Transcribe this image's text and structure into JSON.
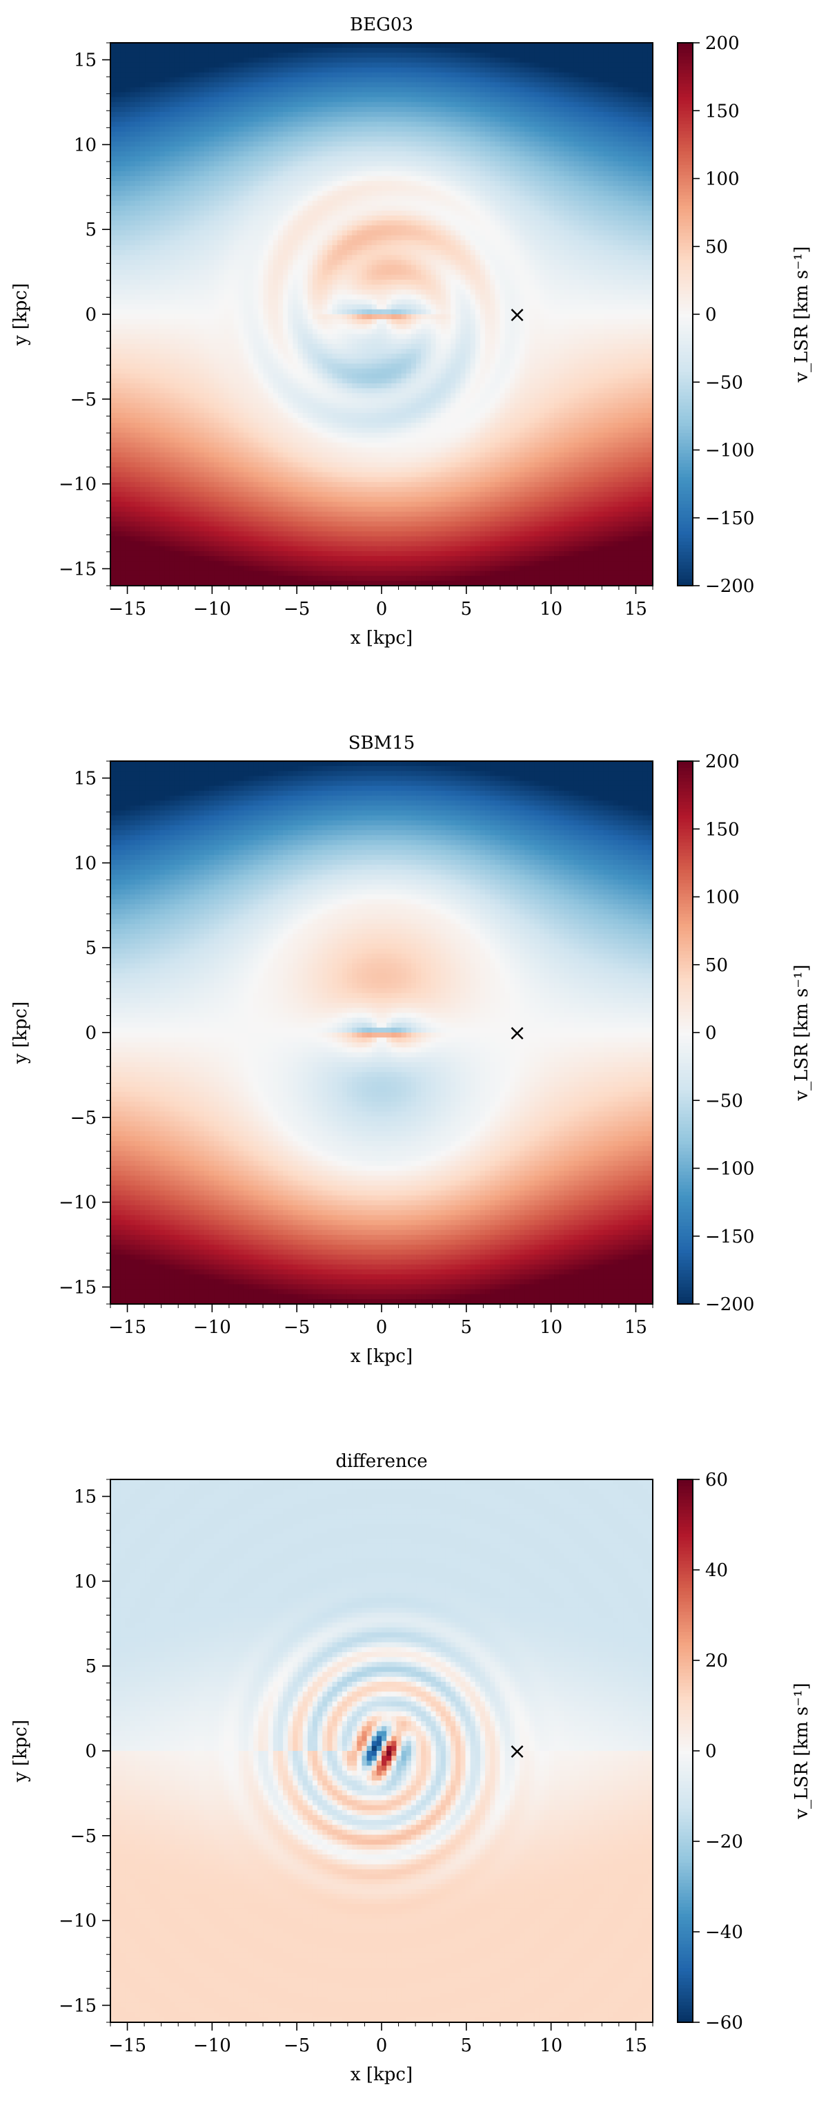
{
  "chart_data": [
    {
      "type": "heatmap",
      "title": "BEG03",
      "xlabel": "x [kpc]",
      "ylabel": "y [kpc]",
      "xlim": [
        -16,
        16
      ],
      "ylim": [
        -16,
        16
      ],
      "xticks": [
        -15,
        -10,
        -5,
        0,
        5,
        10,
        15
      ],
      "yticks": [
        -15,
        -10,
        -5,
        0,
        5,
        10,
        15
      ],
      "colorbar": {
        "label": "v_LSR [km s⁻¹]",
        "range": [
          -200,
          200
        ],
        "ticks": [
          -200,
          -150,
          -100,
          -50,
          0,
          50,
          100,
          150,
          200
        ],
        "colormap": "RdBu_r"
      },
      "field": {
        "model": "rotation",
        "vmax": 200,
        "inner_radius": 7.5,
        "center_peak": 180,
        "ripples": true
      },
      "marker": {
        "symbol": "×",
        "x": 8,
        "y": 0
      },
      "grid": false
    },
    {
      "type": "heatmap",
      "title": "SBM15",
      "xlabel": "x [kpc]",
      "ylabel": "y [kpc]",
      "xlim": [
        -16,
        16
      ],
      "ylim": [
        -16,
        16
      ],
      "xticks": [
        -15,
        -10,
        -5,
        0,
        5,
        10,
        15
      ],
      "yticks": [
        -15,
        -10,
        -5,
        0,
        5,
        10,
        15
      ],
      "colorbar": {
        "label": "v_LSR [km s⁻¹]",
        "range": [
          -200,
          200
        ],
        "ticks": [
          -200,
          -150,
          -100,
          -50,
          0,
          50,
          100,
          150,
          200
        ],
        "colormap": "RdBu_r"
      },
      "field": {
        "model": "rotation",
        "vmax": 200,
        "inner_radius": 7.5,
        "center_peak": 190,
        "ripples": false
      },
      "marker": {
        "symbol": "×",
        "x": 8,
        "y": 0
      },
      "grid": false
    },
    {
      "type": "heatmap",
      "title": "difference",
      "xlabel": "x [kpc]",
      "ylabel": "y [kpc]",
      "xlim": [
        -16,
        16
      ],
      "ylim": [
        -16,
        16
      ],
      "xticks": [
        -15,
        -10,
        -5,
        0,
        5,
        10,
        15
      ],
      "yticks": [
        -15,
        -10,
        -5,
        0,
        5,
        10,
        15
      ],
      "colorbar": {
        "label": "v_LSR [km s⁻¹]",
        "range": [
          -60,
          60
        ],
        "ticks": [
          -60,
          -40,
          -20,
          0,
          20,
          40,
          60
        ],
        "colormap": "RdBu_r"
      },
      "field": {
        "model": "difference",
        "outer_level": 12,
        "ring_amplitude": 15,
        "center_peak": 60
      },
      "marker": {
        "symbol": "×",
        "x": 8,
        "y": 0
      },
      "grid": false
    }
  ]
}
